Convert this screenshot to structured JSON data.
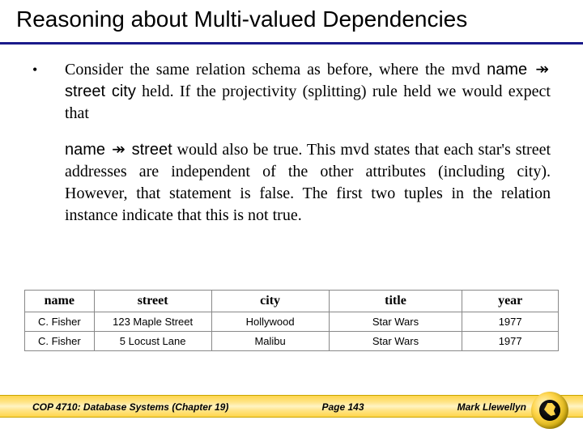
{
  "title": "Reasoning about Multi-valued Dependencies",
  "bullet": "•",
  "para1_a": "Consider the same relation schema as before, where the mvd ",
  "mvd1_left": "name",
  "mvd1_arrow": "↠",
  "mvd1_right": "street city",
  "para1_b": " held.  If the projectivity (splitting) rule held we would expect that",
  "mvd2_left": "name",
  "mvd2_arrow": "↠",
  "mvd2_right": "street",
  "para2_a": " would also be true.  This mvd states that each star's street addresses are independent of the other attributes (including city).  However, that statement is false.  The first two tuples in the relation instance indicate that this is not true.",
  "table": {
    "headers": [
      "name",
      "street",
      "city",
      "title",
      "year"
    ],
    "rows": [
      [
        "C. Fisher",
        "123 Maple Street",
        "Hollywood",
        "Star Wars",
        "1977"
      ],
      [
        "C. Fisher",
        "5 Locust Lane",
        "Malibu",
        "Star Wars",
        "1977"
      ]
    ],
    "col_widths": [
      "13%",
      "22%",
      "22%",
      "25%",
      "18%"
    ]
  },
  "footer": {
    "left": "COP 4710: Database Systems  (Chapter 19)",
    "center": "Page 143",
    "right": "Mark Llewellyn"
  },
  "colors": {
    "title_underline": "#1a1a8a",
    "band_light": "#fff4c4",
    "band_mid": "#ffe487",
    "band_dark": "#ffd54a"
  }
}
